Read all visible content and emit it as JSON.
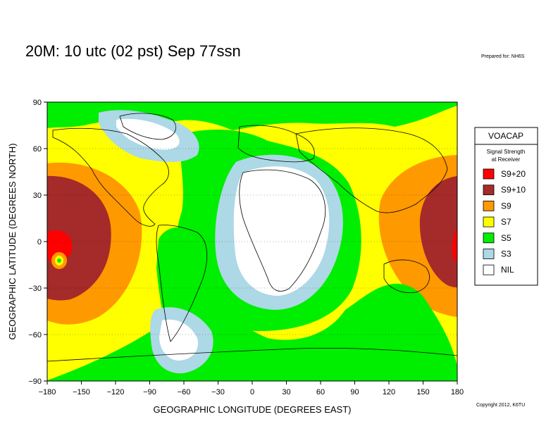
{
  "title": "20M:  10 utc (02 pst) Sep 77ssn",
  "prepared_for": "Prepared for: NH6S",
  "copyright": "Copyright 2012, K6TU",
  "axes": {
    "x_title": "GEOGRAPHIC LONGITUDE (DEGREES EAST)",
    "y_title": "GEOGRAPHIC LATITUDE (DEGREES NORTH)",
    "x_ticks": [
      "−180",
      "−150",
      "−120",
      "−90",
      "−60",
      "−30",
      "0",
      "30",
      "60",
      "90",
      "120",
      "150",
      "180"
    ],
    "y_ticks": [
      "90",
      "60",
      "30",
      "0",
      "−30",
      "−60",
      "−90"
    ]
  },
  "legend": {
    "title": "VOACAP",
    "subtitle_line1": "Signal Strength",
    "subtitle_line2": "at Receiver",
    "items": [
      {
        "label": "S9+20",
        "color": "#ff0000"
      },
      {
        "label": "S9+10",
        "color": "#a52a2a"
      },
      {
        "label": "S9",
        "color": "#ff9900"
      },
      {
        "label": "S7",
        "color": "#ffff00"
      },
      {
        "label": "S5",
        "color": "#00ee00"
      },
      {
        "label": "S3",
        "color": "#add8e6"
      },
      {
        "label": "NIL",
        "color": "#ffffff"
      }
    ]
  }
}
